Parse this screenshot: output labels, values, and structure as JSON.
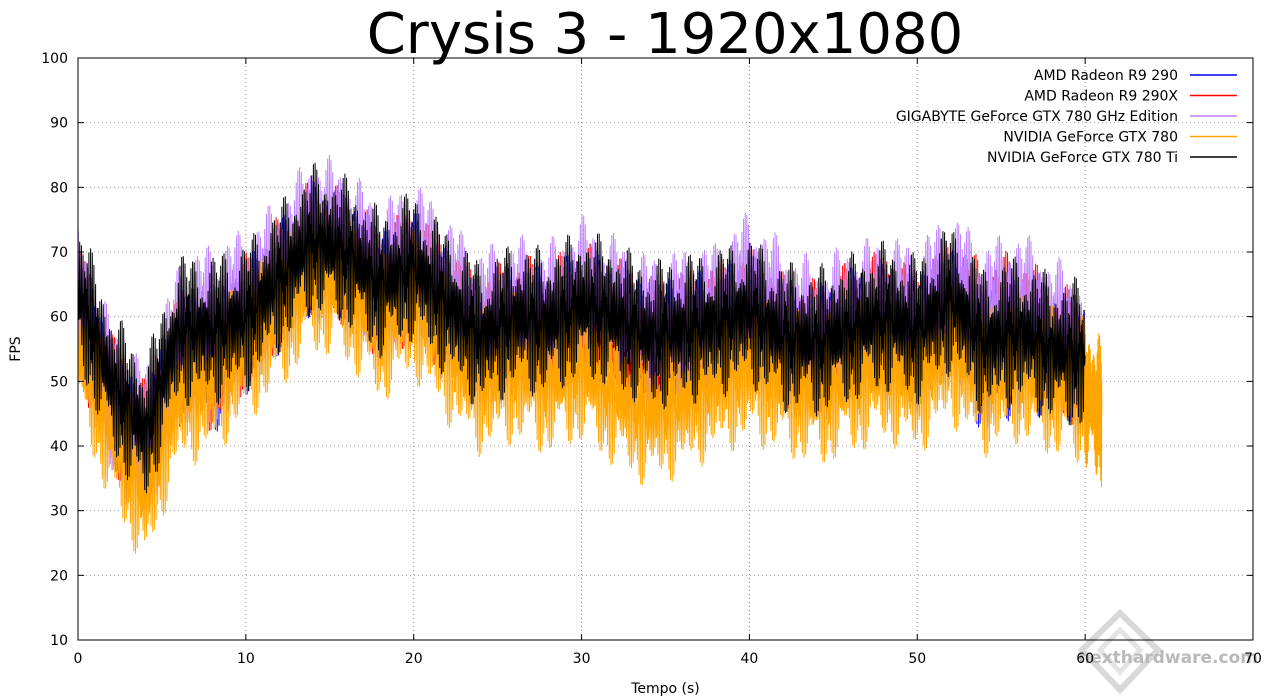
{
  "chart_data": {
    "type": "line",
    "title": "Crysis 3 - 1920x1080",
    "xlabel": "Tempo (s)",
    "ylabel": "FPS",
    "xlim": [
      0,
      70
    ],
    "ylim": [
      10,
      100
    ],
    "xticks": [
      "0",
      "10",
      "20",
      "30",
      "40",
      "50",
      "60",
      "70"
    ],
    "yticks": [
      "10",
      "20",
      "30",
      "40",
      "50",
      "60",
      "70",
      "80",
      "90",
      "100"
    ],
    "grid": true,
    "legend_position": "top-right",
    "x": [
      0,
      2,
      4,
      6,
      8,
      10,
      12,
      14,
      16,
      18,
      20,
      22,
      24,
      26,
      28,
      30,
      32,
      34,
      36,
      38,
      40,
      42,
      44,
      46,
      48,
      50,
      52,
      54,
      56,
      58,
      60,
      61
    ],
    "series": [
      {
        "name": "AMD Radeon R9 290",
        "color": "#0000ff",
        "values": [
          62,
          45,
          38,
          55,
          52,
          58,
          64,
          70,
          68,
          63,
          66,
          60,
          55,
          58,
          57,
          60,
          58,
          55,
          56,
          57,
          59,
          55,
          54,
          57,
          58,
          56,
          60,
          52,
          55,
          54,
          52,
          null
        ]
      },
      {
        "name": "AMD Radeon R9 290X",
        "color": "#ff0000",
        "values": [
          61,
          47,
          40,
          54,
          53,
          59,
          65,
          71,
          69,
          64,
          67,
          61,
          56,
          59,
          58,
          61,
          59,
          56,
          57,
          58,
          60,
          56,
          55,
          58,
          60,
          57,
          62,
          58,
          60,
          55,
          53,
          null
        ]
      },
      {
        "name": "GIGABYTE GeForce GTX 780 GHz Edition",
        "color": "#bf7fff",
        "values": [
          63,
          48,
          41,
          57,
          60,
          62,
          67,
          74,
          72,
          66,
          70,
          64,
          59,
          61,
          60,
          64,
          61,
          58,
          59,
          60,
          65,
          60,
          57,
          60,
          61,
          60,
          65,
          60,
          62,
          58,
          55,
          null
        ]
      },
      {
        "name": "NVIDIA GeForce GTX 780",
        "color": "#ffa500",
        "values": [
          55,
          42,
          32,
          48,
          50,
          55,
          60,
          66,
          64,
          58,
          62,
          55,
          50,
          52,
          50,
          52,
          48,
          45,
          47,
          50,
          52,
          50,
          48,
          50,
          52,
          50,
          55,
          50,
          52,
          50,
          48,
          45
        ]
      },
      {
        "name": "NVIDIA GeForce GTX 780 Ti",
        "color": "#000000",
        "values": [
          64,
          50,
          42,
          58,
          58,
          60,
          66,
          72,
          70,
          65,
          68,
          62,
          57,
          60,
          59,
          62,
          60,
          57,
          58,
          59,
          61,
          57,
          56,
          58,
          60,
          58,
          63,
          56,
          58,
          55,
          54,
          null
        ]
      }
    ]
  },
  "watermark": {
    "text": "nexthardware.com",
    "color": "#b9b9b9"
  }
}
